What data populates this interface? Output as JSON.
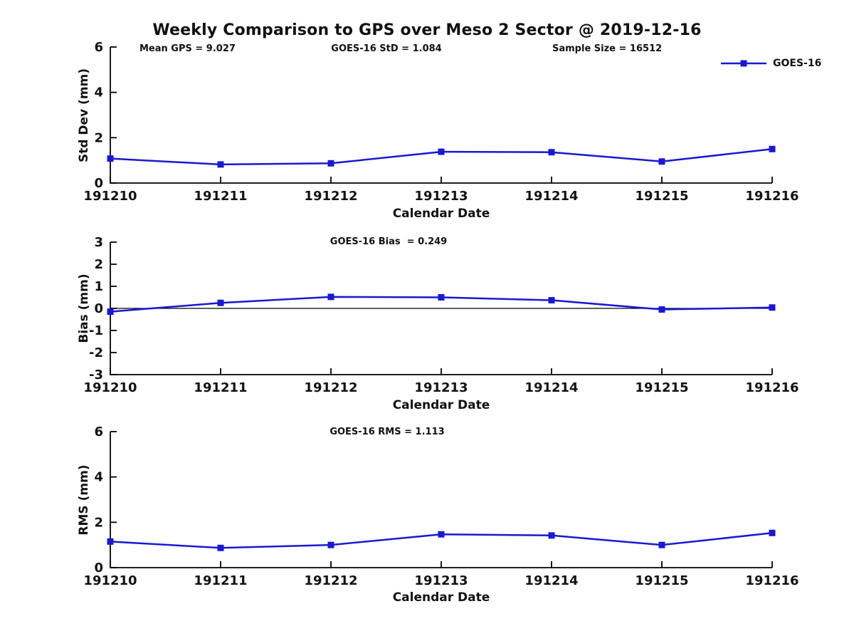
{
  "title": "Weekly Comparison to GPS over Meso 2 Sector @ 2019-12-16",
  "legend": {
    "label": "GOES-16",
    "color": "#1919d2"
  },
  "chart_data": [
    {
      "type": "line",
      "categories": [
        "191210",
        "191211",
        "191212",
        "191213",
        "191214",
        "191215",
        "191216"
      ],
      "series": [
        {
          "name": "GOES-16",
          "values": [
            1.08,
            0.82,
            0.87,
            1.38,
            1.36,
            0.95,
            1.5
          ]
        }
      ],
      "xlabel": "Calendar Date",
      "ylabel": "Std Dev (mm)",
      "ylim": [
        0,
        6
      ],
      "yticks": [
        0,
        2,
        4,
        6
      ],
      "grid": false,
      "zero_line": false,
      "line_color": "#1919d2",
      "marker": "square",
      "legend_position": "top-right-outside",
      "annotations": [
        "Mean GPS = 9.027",
        "GOES-16 StD = 1.084",
        "Sample Size = 16512"
      ]
    },
    {
      "type": "line",
      "categories": [
        "191210",
        "191211",
        "191212",
        "191213",
        "191214",
        "191215",
        "191216"
      ],
      "series": [
        {
          "name": "GOES-16",
          "values": [
            -0.15,
            0.25,
            0.52,
            0.5,
            0.37,
            -0.05,
            0.04
          ]
        }
      ],
      "xlabel": "Calendar Date",
      "ylabel": "Bias (mm)",
      "ylim": [
        -3,
        3
      ],
      "yticks": [
        -3,
        -2,
        -1,
        0,
        1,
        2,
        3
      ],
      "grid": false,
      "zero_line": true,
      "line_color": "#1919d2",
      "marker": "square",
      "annotations": [
        "GOES-16 Bias  = 0.249"
      ]
    },
    {
      "type": "line",
      "categories": [
        "191210",
        "191211",
        "191212",
        "191213",
        "191214",
        "191215",
        "191216"
      ],
      "series": [
        {
          "name": "GOES-16",
          "values": [
            1.15,
            0.87,
            1.0,
            1.47,
            1.42,
            1.0,
            1.53
          ]
        }
      ],
      "xlabel": "Calendar Date",
      "ylabel": "RMS (mm)",
      "ylim": [
        0,
        6
      ],
      "yticks": [
        0,
        2,
        4,
        6
      ],
      "grid": false,
      "zero_line": false,
      "line_color": "#1919d2",
      "marker": "square",
      "annotations": [
        "GOES-16 RMS = 1.113"
      ]
    }
  ]
}
